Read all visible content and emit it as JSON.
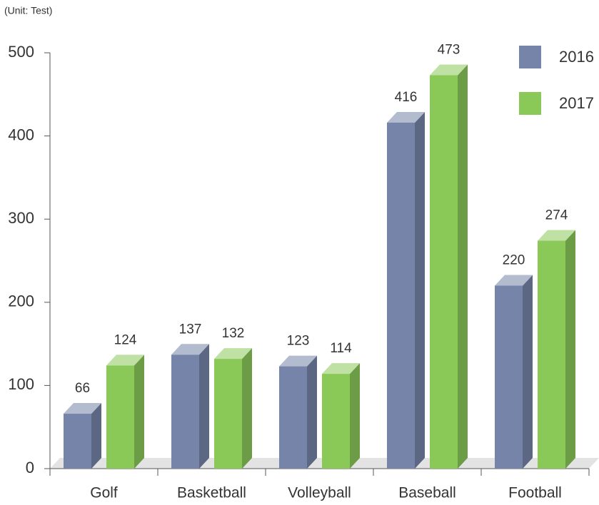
{
  "chart_data": {
    "type": "bar3d",
    "unit_note": "(Unit: Test)",
    "categories": [
      "Golf",
      "Basketball",
      "Volleyball",
      "Baseball",
      "Football"
    ],
    "series": [
      {
        "name": "2016",
        "color": "#7584a8",
        "values": [
          66,
          137,
          123,
          416,
          220
        ]
      },
      {
        "name": "2017",
        "color": "#8ac858",
        "values": [
          124,
          132,
          114,
          473,
          274
        ]
      }
    ],
    "ylim": [
      0,
      500
    ],
    "yticks": [
      0,
      100,
      200,
      300,
      400,
      500
    ],
    "legend": "top-right"
  }
}
